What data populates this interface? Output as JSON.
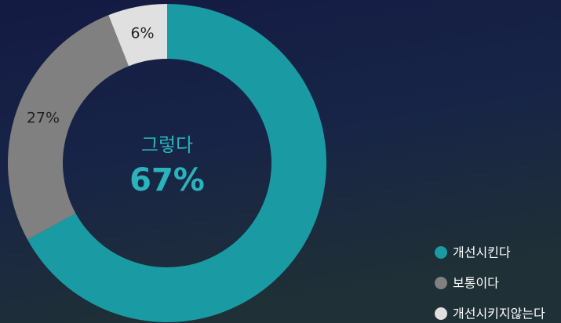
{
  "chart_data": {
    "type": "donut",
    "center_label": "그렇다",
    "series": [
      {
        "name": "개선시킨다",
        "color": "#1a9ba3"
      },
      {
        "name": "보통이다",
        "color": "#808080"
      },
      {
        "name": "개선시키지않는다",
        "color": "#e0e0e0"
      }
    ],
    "values": [
      67,
      27,
      6
    ],
    "value_labels": [
      "67%",
      "27%",
      "6%"
    ],
    "legend": "bottom-right"
  }
}
